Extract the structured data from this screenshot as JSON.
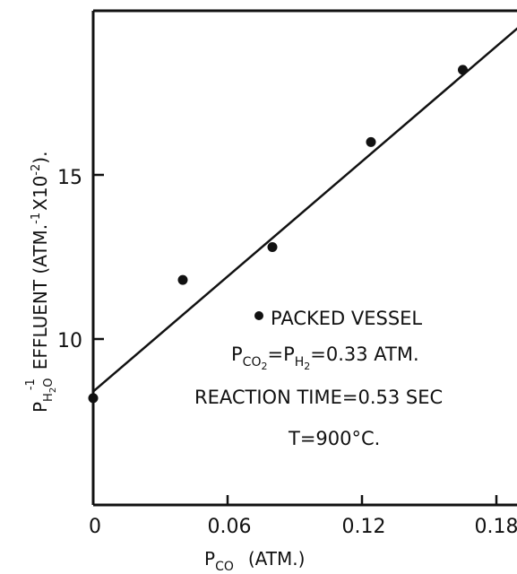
{
  "chart_data": {
    "type": "scatter",
    "title": "",
    "xlabel": "P_CO (ATM.)",
    "xlabel_main": "P",
    "xlabel_sub": "CO",
    "xlabel_rest": "(ATM.)",
    "ylabel": "P_H2O^-1 EFFLUENT (ATM.^-1 X10^-2)",
    "ylabel_main": "P",
    "ylabel_sub": "H",
    "ylabel_sub2": "2",
    "ylabel_sub3": "O",
    "ylabel_sup": "-1",
    "ylabel_rest": "EFFLUENT (ATM.",
    "ylabel_sup2": "-1",
    "ylabel_rest2": "X10",
    "ylabel_sup3": "-2",
    "ylabel_rest3": ").",
    "xlim": [
      0,
      0.19
    ],
    "ylim": [
      5,
      20
    ],
    "x_ticks": [
      0,
      0.06,
      0.12,
      0.18
    ],
    "x_tick_labels": [
      "0",
      "0.06",
      "0.12",
      "0.18"
    ],
    "y_ticks": [
      10,
      15
    ],
    "y_tick_labels": [
      "10",
      "15"
    ],
    "grid": false,
    "legend": "inside, lower-right",
    "series": [
      {
        "name": "PACKED VESSEL",
        "marker": "filled-circle",
        "color": "#111111",
        "x": [
          0,
          0.04,
          0.08,
          0.124,
          0.165
        ],
        "y": [
          8.2,
          11.8,
          12.8,
          16.0,
          18.2
        ]
      }
    ],
    "fit_line": {
      "x": [
        0,
        0.19
      ],
      "y": [
        8.4,
        19.5
      ]
    },
    "annotations": {
      "legend_label": "PACKED VESSEL",
      "cond1_p1": "P",
      "cond1_p1_sub": "CO",
      "cond1_p1_sub2": "2",
      "cond1_eq": "=P",
      "cond1_p2_sub": "H",
      "cond1_p2_sub2": "2",
      "cond1_rest": "=0.33 ATM.",
      "cond2": "REACTION TIME=0.53 SEC",
      "cond3": "T=900°C."
    }
  }
}
